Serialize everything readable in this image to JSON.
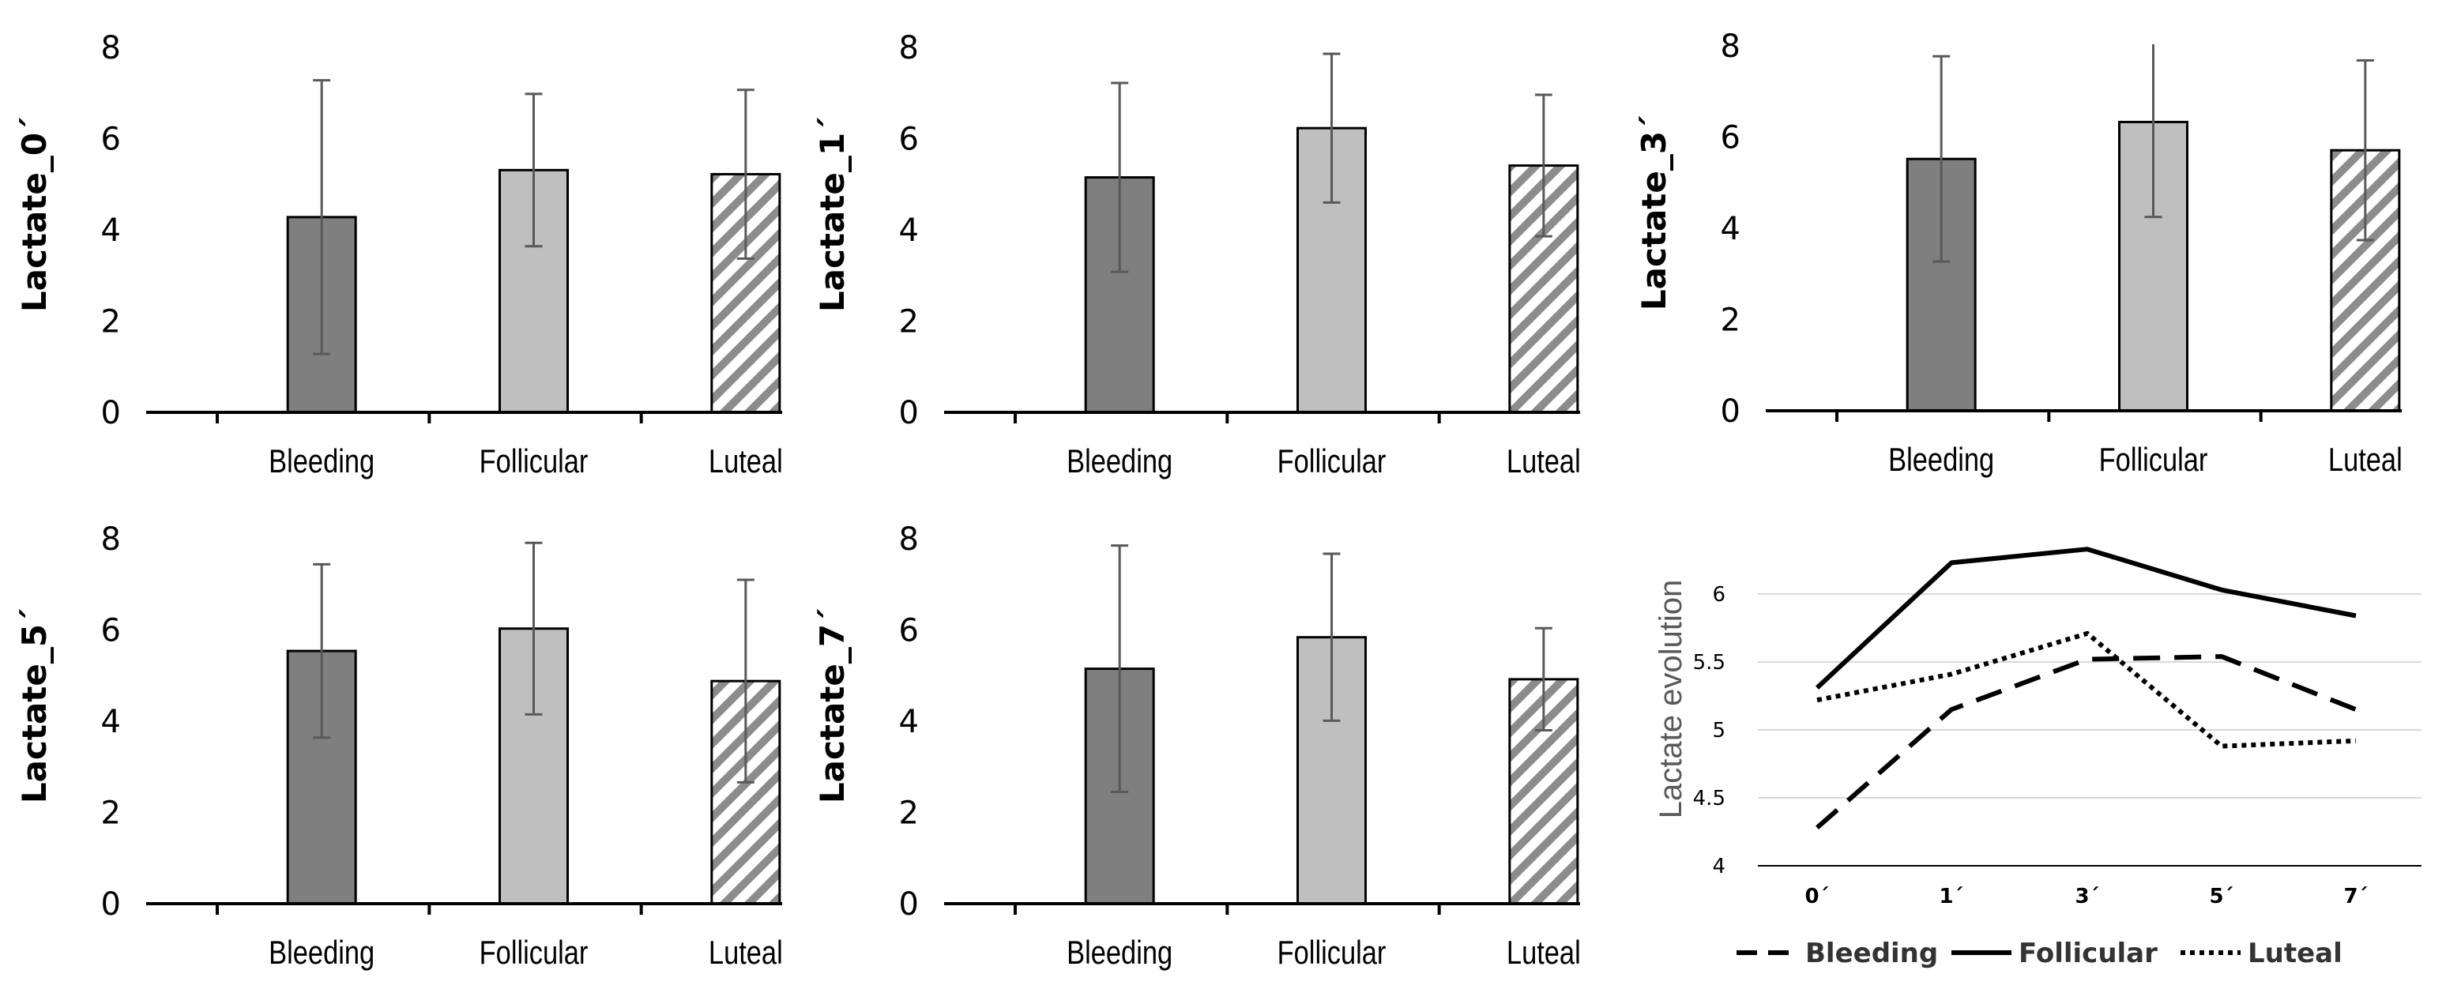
{
  "chart_data": [
    {
      "type": "bar",
      "ylabel": "Lactate_0´",
      "categories": [
        "Bleeding",
        "Follicular",
        "Luteal"
      ],
      "values": [
        4.28,
        5.31,
        5.22
      ],
      "errors": [
        3.0,
        1.67,
        1.85
      ],
      "ylim": [
        0,
        8
      ],
      "yticks": [
        "0",
        "2",
        "4",
        "6",
        "8"
      ]
    },
    {
      "type": "bar",
      "ylabel": "Lactate_1´",
      "categories": [
        "Bleeding",
        "Follicular",
        "Luteal"
      ],
      "values": [
        5.15,
        6.23,
        5.41
      ],
      "errors": [
        2.07,
        1.63,
        1.55
      ],
      "ylim": [
        0,
        8
      ],
      "yticks": [
        "0",
        "2",
        "4",
        "6",
        "8"
      ]
    },
    {
      "type": "bar",
      "ylabel": "Lactate_3´",
      "categories": [
        "Bleeding",
        "Follicular",
        "Luteal"
      ],
      "values": [
        5.52,
        6.33,
        5.71
      ],
      "errors": [
        2.25,
        2.08,
        1.97
      ],
      "ylim": [
        0,
        8
      ],
      "yticks": [
        "0",
        "2",
        "4",
        "6",
        "8"
      ]
    },
    {
      "type": "bar",
      "ylabel": "Lactate_5´",
      "categories": [
        "Bleeding",
        "Follicular",
        "Luteal"
      ],
      "values": [
        5.54,
        6.03,
        4.88
      ],
      "errors": [
        1.9,
        1.88,
        2.22
      ],
      "ylim": [
        0,
        8
      ],
      "yticks": [
        "0",
        "2",
        "4",
        "6",
        "8"
      ]
    },
    {
      "type": "bar",
      "ylabel": "Lactate_7´",
      "categories": [
        "Bleeding",
        "Follicular",
        "Luteal"
      ],
      "values": [
        5.15,
        5.84,
        4.92
      ],
      "errors": [
        2.7,
        1.83,
        1.12
      ],
      "ylim": [
        0,
        8
      ],
      "yticks": [
        "0",
        "2",
        "4",
        "6",
        "8"
      ]
    },
    {
      "type": "line",
      "ylabel": "Lactate evolution",
      "x": [
        "0´",
        "1´",
        "3´",
        "5´",
        "7´"
      ],
      "ylim": [
        4,
        6.3
      ],
      "yticks": [
        "4",
        "4.5",
        "5",
        "5.5",
        "6"
      ],
      "series": [
        {
          "name": "Bleeding",
          "style": "dashed",
          "values": [
            4.28,
            5.15,
            5.52,
            5.54,
            5.15
          ]
        },
        {
          "name": "Follicular",
          "style": "solid",
          "values": [
            5.31,
            6.23,
            6.33,
            6.03,
            5.84
          ]
        },
        {
          "name": "Luteal",
          "style": "dotted",
          "values": [
            5.22,
            5.41,
            5.71,
            4.88,
            4.92
          ]
        }
      ]
    }
  ],
  "colors": {
    "bleeding_fill": "#7f7f7f",
    "follicular_fill": "#bfbfbf",
    "luteal_stripe": "#8c8c8c",
    "error_bar": "#595959",
    "gridline": "#d9d9d9"
  }
}
